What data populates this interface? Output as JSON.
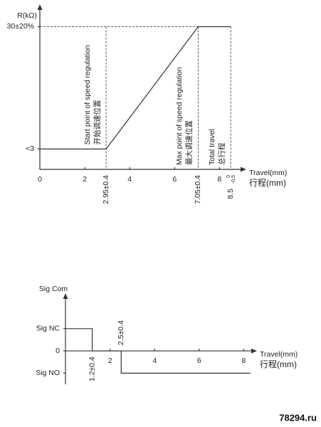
{
  "chart_data": [
    {
      "type": "line",
      "ylabel": "R(kΩ)",
      "xlabel": "Travel(mm)",
      "xlabel_cn": "行程(mm)",
      "xlim": [
        0,
        9
      ],
      "ylim": [
        -1.5,
        34
      ],
      "xticks": [
        0,
        2,
        4,
        6,
        8
      ],
      "yticks": [
        {
          "value": 3,
          "label": "<3"
        },
        {
          "value": 30,
          "label": "30±20%"
        }
      ],
      "series": [
        {
          "x": [
            0,
            2.95,
            7.05,
            8.5
          ],
          "values": [
            3,
            3,
            30,
            30
          ],
          "color": "#333333"
        }
      ],
      "guides": true,
      "markers": [
        {
          "value": 2.95,
          "label": "2.95±0.4",
          "side": "below",
          "note": [
            "Start point of speed regulation",
            "开始调速位置"
          ]
        },
        {
          "value": 7.05,
          "label": "7.05±0.4",
          "side": "below",
          "note": [
            "Max point of speed regulation",
            "最大调速位置"
          ]
        },
        {
          "value": 8.5,
          "label": "8.5",
          "upper": "0",
          "lower": "-0.5",
          "side": "below",
          "note": [
            "Total travel",
            "总行程"
          ]
        }
      ]
    },
    {
      "type": "line",
      "ylabel": "Sig Com",
      "xlabel": "Travel(mm)",
      "xlabel_cn": "行程(mm)",
      "xlim": [
        0,
        8.4
      ],
      "ylim": [
        -1.5,
        2.4
      ],
      "xticks": [
        2,
        4,
        6,
        8
      ],
      "yticks": [
        {
          "value": -1,
          "label": "Sig NO"
        },
        0,
        {
          "value": 1,
          "label": "Sig NC"
        }
      ],
      "x_axis_at_zero": true,
      "series": [
        {
          "x": [
            0,
            1.2,
            1.2,
            2.5,
            2.5,
            8.3
          ],
          "values": [
            1,
            1,
            0,
            0,
            -1,
            -1
          ],
          "color": "#333333"
        }
      ],
      "markers": [
        {
          "value": 1.2,
          "label": "1.2±0.4",
          "side": "below"
        },
        {
          "value": 2.5,
          "label": "2.5±0.4",
          "side": "above"
        }
      ]
    }
  ],
  "watermark": "78294.ru"
}
